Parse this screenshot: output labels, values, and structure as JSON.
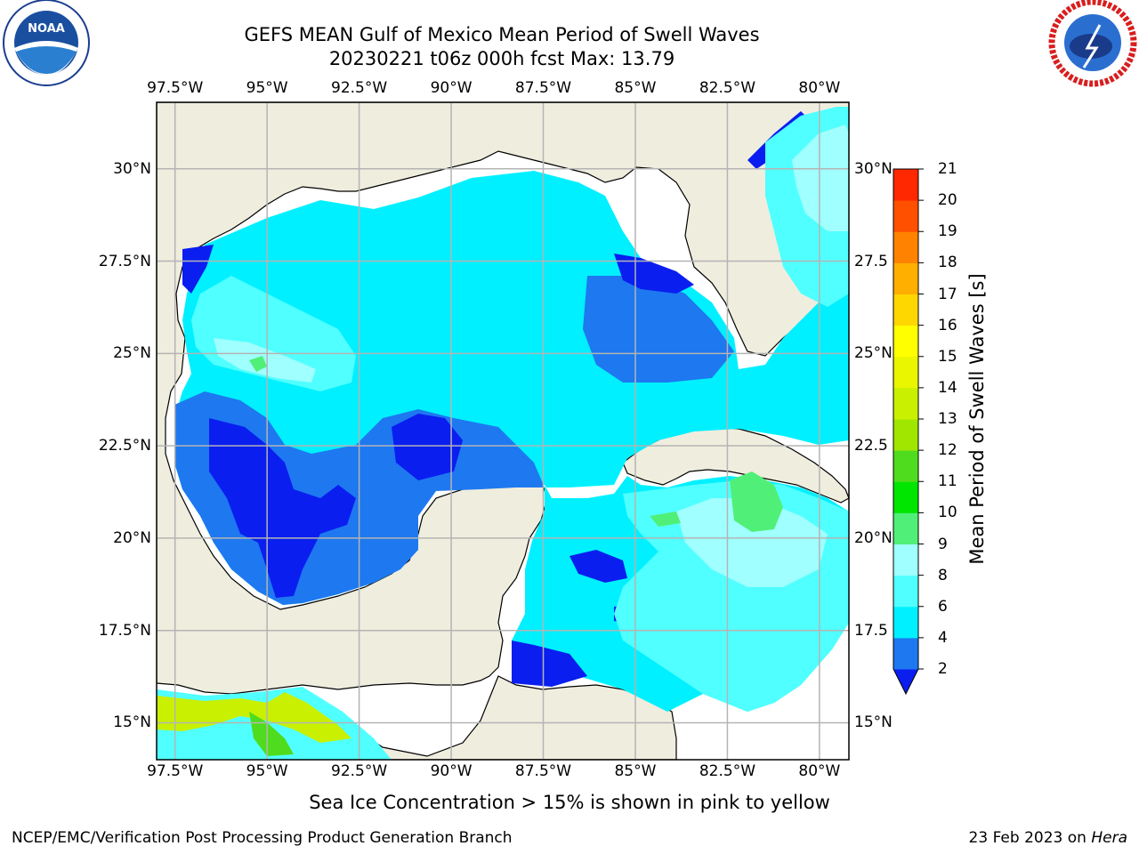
{
  "title": {
    "line1": "GEFS MEAN Gulf of Mexico Mean Period of Swell Waves",
    "line2": "20230221 t06z 000h fcst   Max: 13.79"
  },
  "axes": {
    "lon_top": [
      "97.5°W",
      "95°W",
      "92.5°W",
      "90°W",
      "87.5°W",
      "85°W",
      "82.5°W",
      "80°W"
    ],
    "lon_bottom": [
      "97.5°W",
      "95°W",
      "92.5°W",
      "90°W",
      "87.5°W",
      "85°W",
      "82.5°W",
      "80°W"
    ],
    "lat_left": [
      "30°N",
      "27.5°N",
      "25°N",
      "22.5°N",
      "20°N",
      "17.5°N",
      "15°N"
    ],
    "lat_right": [
      "30°N",
      "27.5",
      "25°N",
      "22.5",
      "20°N",
      "17.5",
      "15°N"
    ],
    "lon_range": [
      -98,
      -79.2
    ],
    "lat_range": [
      14,
      31.8
    ],
    "grid": true
  },
  "colorbar": {
    "label": "Mean Period of Swell Waves [s]",
    "ticks": [
      "2",
      "4",
      "6",
      "8",
      "9",
      "10",
      "11",
      "12",
      "13",
      "14",
      "15",
      "16",
      "17",
      "18",
      "19",
      "20",
      "21"
    ],
    "colors": [
      "#0a1ef0",
      "#1e78f0",
      "#00f0ff",
      "#50ffff",
      "#a0ffff",
      "#50f078",
      "#00e600",
      "#50dc1e",
      "#a0e600",
      "#c8f000",
      "#eaf500",
      "#ffff00",
      "#ffd700",
      "#ffaf00",
      "#ff8200",
      "#ff5000",
      "#ff2800",
      "#ff0000"
    ],
    "extend": "min"
  },
  "chart_data": {
    "type": "heatmap",
    "title": "GEFS MEAN Gulf of Mexico Mean Period of Swell Waves",
    "subtitle": "20230221 t06z 000h fcst   Max: 13.79",
    "xlabel": "",
    "ylabel": "",
    "xlim": [
      -98,
      -79.2
    ],
    "ylim": [
      14,
      31.8
    ],
    "colorbar_label": "Mean Period of Swell Waves [s]",
    "max": 13.79,
    "levels": [
      2,
      4,
      6,
      8,
      9,
      10,
      11,
      12,
      13,
      14,
      15,
      16,
      17,
      18,
      19,
      20,
      21
    ]
  },
  "note": "Sea Ice Concentration > 15% is shown in pink to yellow",
  "footer": {
    "left": "NCEP/EMC/Verification Post Processing Product Generation Branch",
    "right_prefix": "23 Feb 2023 on ",
    "right_machine": "Hera"
  },
  "logos": {
    "noaa_text": "NOAA",
    "noaa_ring": "NATIONAL OCEANIC AND ATMOSPHERIC ADMINISTRATION · U.S. DEPARTMENT OF COMMERCE",
    "nws_ring": "NATIONAL WEATHER SERVICE"
  }
}
